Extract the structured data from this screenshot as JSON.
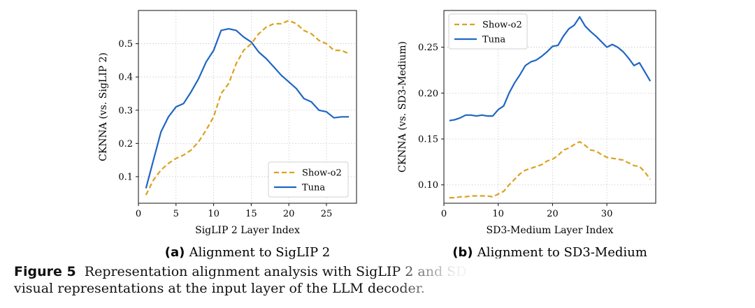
{
  "chart_data": [
    {
      "type": "line",
      "subplot_label": "(a)",
      "title": "Alignment to SigLIP 2",
      "xlabel": "SigLIP 2 Layer Index",
      "ylabel": "CKNNA (vs. SigLIP 2)",
      "xlim": [
        0,
        29
      ],
      "ylim": [
        0.02,
        0.6
      ],
      "xticks": [
        0,
        5,
        10,
        15,
        20,
        25
      ],
      "yticks": [
        0.1,
        0.2,
        0.3,
        0.4,
        0.5
      ],
      "grid": true,
      "legend_position": "lower-right",
      "series": [
        {
          "name": "Show-o2",
          "style": "dashed",
          "color": "#dba21d",
          "x": [
            1,
            2,
            3,
            4,
            5,
            6,
            7,
            8,
            9,
            10,
            11,
            12,
            13,
            14,
            15,
            16,
            17,
            18,
            19,
            20,
            21,
            22,
            23,
            24,
            25,
            26,
            27,
            28
          ],
          "y": [
            0.045,
            0.09,
            0.12,
            0.14,
            0.155,
            0.165,
            0.18,
            0.205,
            0.24,
            0.28,
            0.35,
            0.38,
            0.44,
            0.48,
            0.5,
            0.53,
            0.55,
            0.56,
            0.56,
            0.57,
            0.56,
            0.54,
            0.53,
            0.51,
            0.5,
            0.48,
            0.48,
            0.47
          ]
        },
        {
          "name": "Tuna",
          "style": "solid",
          "color": "#1f66c3",
          "x": [
            1,
            2,
            3,
            4,
            5,
            6,
            7,
            8,
            9,
            10,
            11,
            12,
            13,
            14,
            15,
            16,
            17,
            18,
            19,
            20,
            21,
            22,
            23,
            24,
            25,
            26,
            27,
            28
          ],
          "y": [
            0.065,
            0.15,
            0.235,
            0.28,
            0.31,
            0.32,
            0.355,
            0.395,
            0.445,
            0.48,
            0.54,
            0.545,
            0.54,
            0.52,
            0.505,
            0.475,
            0.455,
            0.43,
            0.405,
            0.385,
            0.365,
            0.335,
            0.325,
            0.3,
            0.295,
            0.277,
            0.28,
            0.28
          ]
        }
      ]
    },
    {
      "type": "line",
      "subplot_label": "(b)",
      "title": "Alignment to SD3-Medium",
      "xlabel": "SD3-Medium Layer Index",
      "ylabel": "CKNNA (vs. SD3-Medium)",
      "xlim": [
        0,
        39
      ],
      "ylim": [
        0.08,
        0.29
      ],
      "xticks": [
        0,
        10,
        20,
        30
      ],
      "yticks": [
        0.1,
        0.15,
        0.2,
        0.25
      ],
      "grid": true,
      "legend_position": "upper-left",
      "series": [
        {
          "name": "Show-o2",
          "style": "dashed",
          "color": "#dba21d",
          "x": [
            1,
            2,
            3,
            4,
            5,
            6,
            7,
            8,
            9,
            10,
            11,
            12,
            13,
            14,
            15,
            16,
            17,
            18,
            19,
            20,
            21,
            22,
            23,
            24,
            25,
            26,
            27,
            28,
            29,
            30,
            31,
            32,
            33,
            34,
            35,
            36,
            37,
            38
          ],
          "y": [
            0.086,
            0.086,
            0.087,
            0.087,
            0.088,
            0.088,
            0.088,
            0.088,
            0.087,
            0.09,
            0.093,
            0.1,
            0.106,
            0.112,
            0.116,
            0.118,
            0.12,
            0.122,
            0.126,
            0.128,
            0.132,
            0.138,
            0.14,
            0.144,
            0.147,
            0.143,
            0.138,
            0.137,
            0.133,
            0.13,
            0.129,
            0.128,
            0.127,
            0.124,
            0.121,
            0.12,
            0.114,
            0.106
          ]
        },
        {
          "name": "Tuna",
          "style": "solid",
          "color": "#1f66c3",
          "x": [
            1,
            2,
            3,
            4,
            5,
            6,
            7,
            8,
            9,
            10,
            11,
            12,
            13,
            14,
            15,
            16,
            17,
            18,
            19,
            20,
            21,
            22,
            23,
            24,
            25,
            26,
            27,
            28,
            29,
            30,
            31,
            32,
            33,
            34,
            35,
            36,
            37,
            38
          ],
          "y": [
            0.17,
            0.171,
            0.173,
            0.176,
            0.176,
            0.175,
            0.176,
            0.175,
            0.175,
            0.182,
            0.186,
            0.2,
            0.211,
            0.22,
            0.23,
            0.234,
            0.236,
            0.24,
            0.245,
            0.251,
            0.252,
            0.262,
            0.27,
            0.274,
            0.283,
            0.273,
            0.267,
            0.262,
            0.256,
            0.25,
            0.253,
            0.25,
            0.245,
            0.238,
            0.23,
            0.233,
            0.223,
            0.213
          ]
        }
      ]
    }
  ],
  "caption": {
    "label": "Figure 5",
    "text": "Representation alignment analysis with SigLIP 2 and SD",
    "text_line2": "visual representations at the input layer of the LLM decoder."
  }
}
